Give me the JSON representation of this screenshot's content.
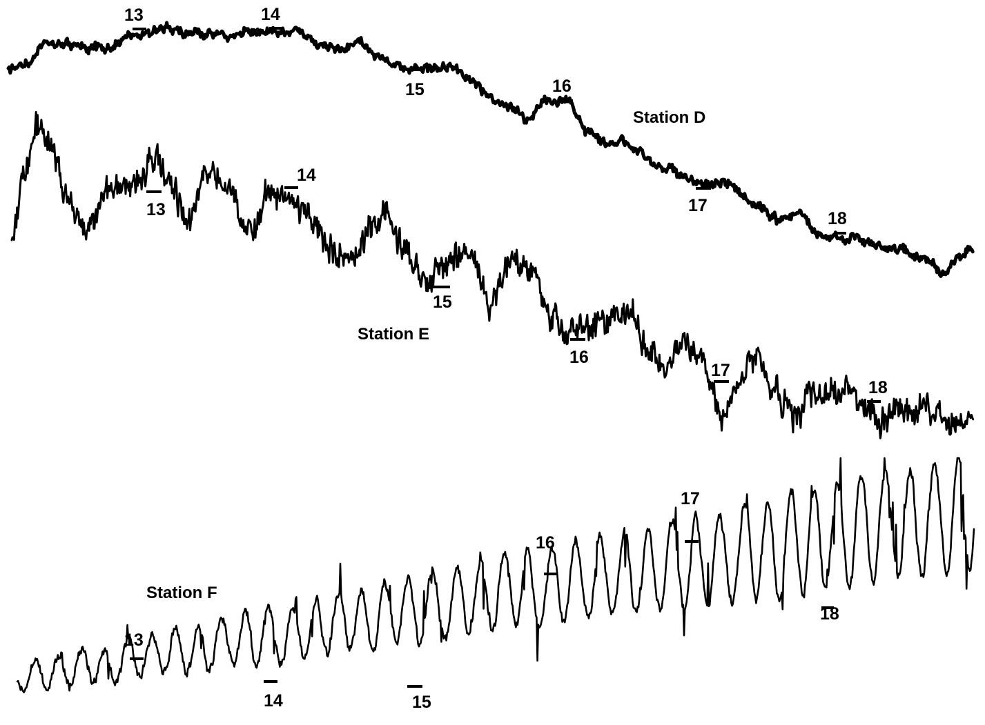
{
  "chart_data": {
    "type": "line",
    "colors": {
      "trace": "#000000",
      "background": "#ffffff"
    },
    "series": [
      {
        "name": "Station D",
        "hour_marks": [
          "13",
          "14",
          "15",
          "16",
          "17",
          "18"
        ]
      },
      {
        "name": "Station E",
        "hour_marks": [
          "13",
          "14",
          "15",
          "16",
          "17",
          "18"
        ]
      },
      {
        "name": "Station F",
        "hour_marks": [
          "13",
          "14",
          "15",
          "16",
          "17",
          "18"
        ]
      }
    ]
  }
}
